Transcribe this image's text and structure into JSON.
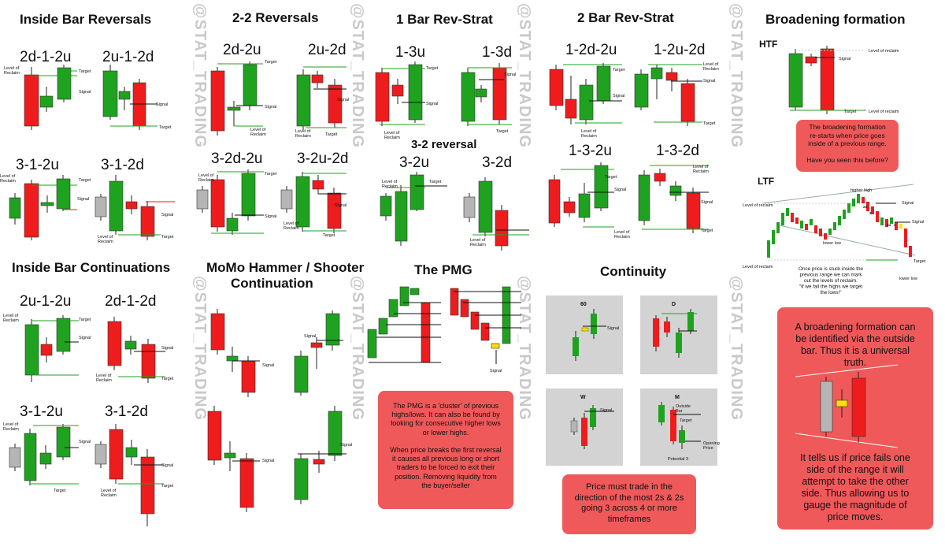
{
  "watermark": "@STAT_TRADING",
  "colors": {
    "bull": "#1fa21f",
    "bear": "#ee1c1c",
    "neutral": "#b5b5b5",
    "inside": "#ffe000",
    "line_green": "#1fa21f",
    "line_red": "#e01f1f",
    "callout": "#f0595a",
    "panel": "#d3d3d3"
  },
  "headings": {
    "inside_bar_reversals": "Inside Bar Reversals",
    "two_two_reversals": "2-2 Reversals",
    "one_bar_rev_strat": "1 Bar Rev-Strat",
    "two_bar_rev_strat": "2 Bar Rev-Strat",
    "broadening_formation": "Broadening formation",
    "inside_bar_continuations": "Inside Bar Continuations",
    "momo_line1": "MoMo Hammer / Shooter",
    "momo_line2": "Continuation",
    "three_two_reversal": "3-2 reversal",
    "the_pmg": "The PMG",
    "continuity": "Continuity"
  },
  "patterns": {
    "ibr_2d12u": "2d-1-2u",
    "ibr_2u12d": "2u-1-2d",
    "ibr_312u": "3-1-2u",
    "ibr_312d": "3-1-2d",
    "rev_2d2u": "2d-2u",
    "rev_2u2d": "2u-2d",
    "rev_32d2u": "3-2d-2u",
    "rev_32u2d": "3-2u-2d",
    "rs_13u": "1-3u",
    "rs_13d": "1-3d",
    "rs_32u": "3-2u",
    "rs_32d": "3-2d",
    "brs_12d2u": "1-2d-2u",
    "brs_12u2d": "1-2u-2d",
    "brs_132u": "1-3-2u",
    "brs_132d": "1-3-2d",
    "ibc_2u12u": "2u-1-2u",
    "ibc_2d12d": "2d-1-2d",
    "ibc_312u": "3-1-2u",
    "ibc_312d": "3-1-2d"
  },
  "labels": {
    "target": "Target",
    "signal": "Signal",
    "level_of_reclaim": "Level of\nReclaim",
    "htf": "HTF",
    "ltf": "LTF",
    "level_of_reclaim_lc": "Level of reclaim",
    "higher_high": "higher high",
    "lower_low": "lower low",
    "lower_low_2": "lower low",
    "tf_60": "60",
    "tf_d": "D",
    "tf_w": "W",
    "tf_m": "M",
    "outside_bar": "Outside\nBar",
    "opening_price": "Opening\nPrice",
    "potential_3": "Potential 3",
    "num_2d": "2d",
    "num_3": "3",
    "num_2u": "2u",
    "num_1": "1"
  },
  "callouts": {
    "broadening_htf": "The broadening formation\nre-starts when price goes\ninside of a previous range.\n\nHave you seen this before?",
    "ltf_note": "Once price is stuck inside the\nprevious range we can mark\nout the levels of reclaim.\n\"If we fail the highs we target\nthe lows!\"",
    "broadening_big_top": "A broadening formation can\nbe identified via the outside\nbar. Thus it is a universal\ntruth.",
    "broadening_big_bottom": "It tells us if price fails one\nside of the range it will\nattempt to take the other\nside. Thus allowing us to\ngauge the magnitude of\nprice moves.",
    "pmg": "The PMG is a 'cluster' of previous\nhighs/lows. It can also be found by\nlooking for consecutive higher lows\nor lower highs.\n\nWhen price breaks the first reversal\nit causes all previous long or short\ntraders to be forced to exit their\nposition. Removing liquidity from\nthe buyer/seller",
    "continuity": "Price must trade in the\ndirection of the most 2s & 2s\ngoing 3 across 4 or more\ntimeframes"
  }
}
